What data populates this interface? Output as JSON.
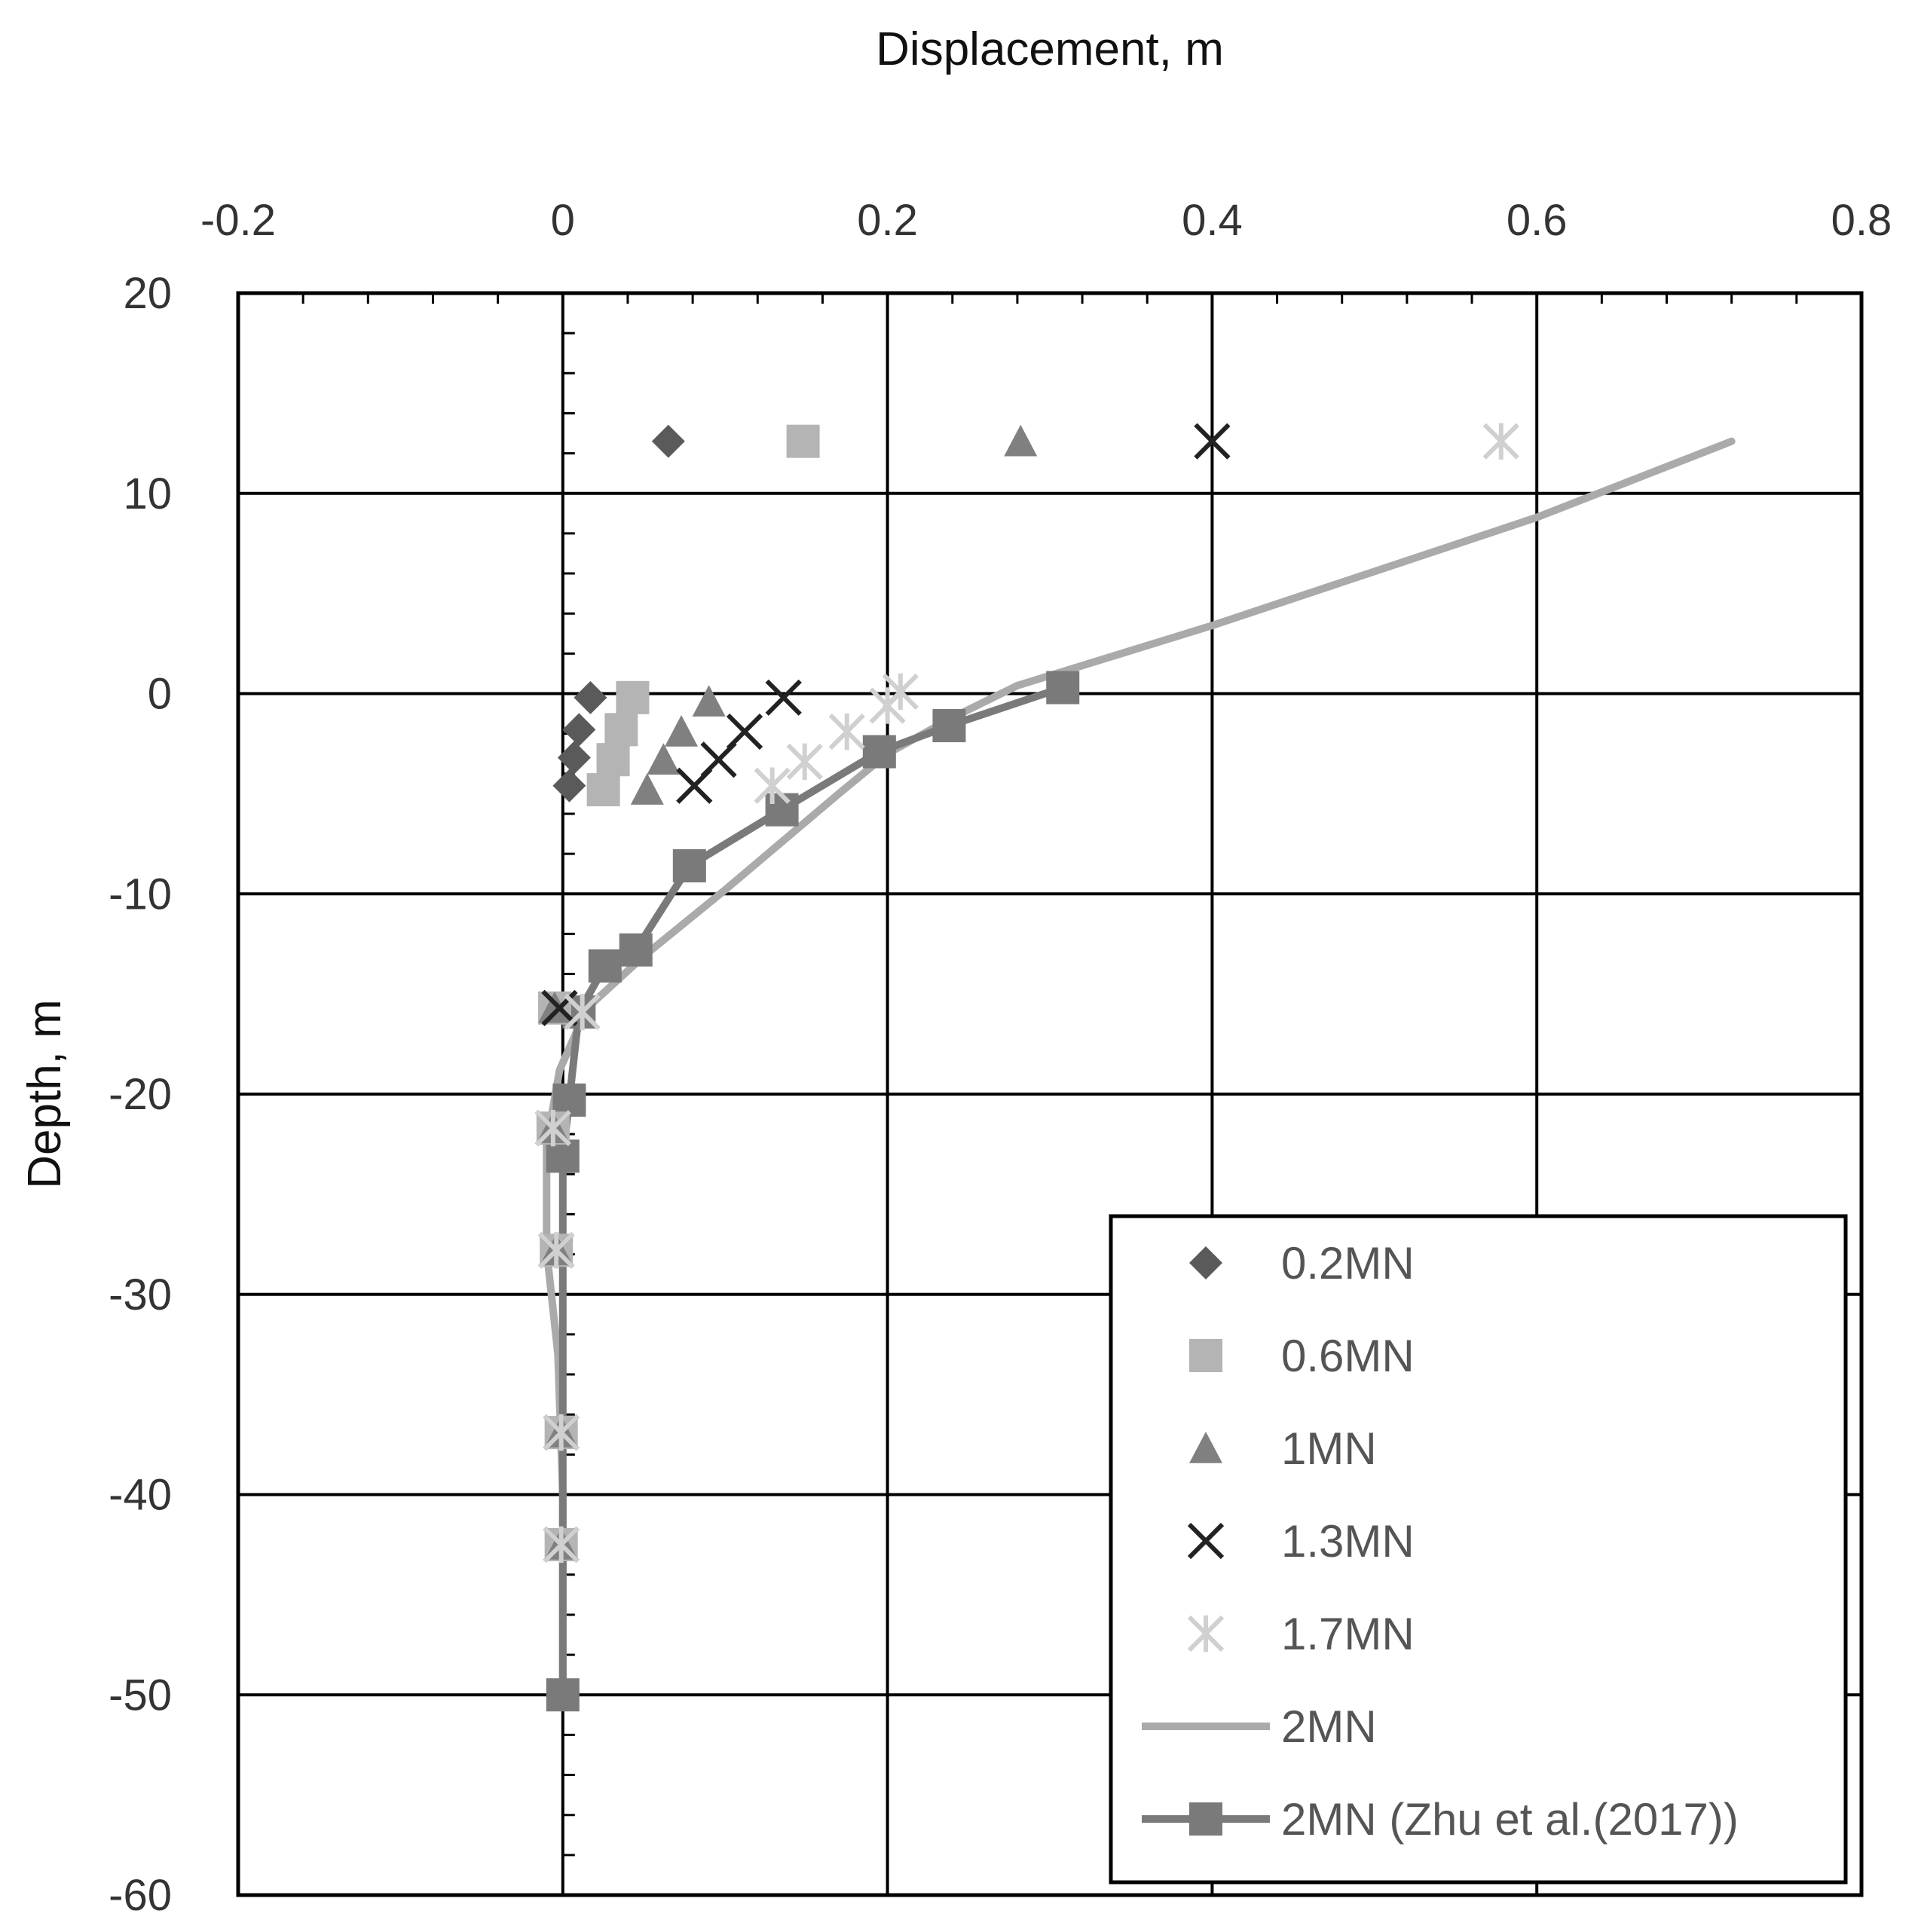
{
  "chart_data": {
    "type": "scatter",
    "xlabel": "Displacement, m",
    "ylabel": "Depth, m",
    "xlim": [
      -0.2,
      0.8
    ],
    "ylim": [
      -60,
      20
    ],
    "x_ticks": [
      "-0.2",
      "0",
      "0.2",
      "0.4",
      "0.6",
      "0.8"
    ],
    "y_ticks": [
      "20",
      "10",
      "0",
      "-10",
      "-20",
      "-30",
      "-40",
      "-50",
      "-60"
    ],
    "x_axis_position": "top",
    "grid": true,
    "legend_position": "bottom-right",
    "series": [
      {
        "name": "0.2MN",
        "marker": "diamond",
        "line": false,
        "color": "#5a5a5a",
        "points": [
          [
            0.065,
            12.6
          ],
          [
            0.017,
            -0.2
          ],
          [
            0.01,
            -1.8
          ],
          [
            0.007,
            -3.2
          ],
          [
            0.004,
            -4.6
          ],
          [
            -0.005,
            -15.7
          ],
          [
            -0.006,
            -21.7
          ],
          [
            -0.004,
            -27.8
          ],
          [
            -0.001,
            -36.9
          ],
          [
            -0.001,
            -42.5
          ]
        ]
      },
      {
        "name": "0.6MN",
        "marker": "square",
        "line": false,
        "color": "#b4b4b4",
        "points": [
          [
            0.148,
            12.6
          ],
          [
            0.043,
            -0.2
          ],
          [
            0.036,
            -1.8
          ],
          [
            0.031,
            -3.3
          ],
          [
            0.025,
            -4.8
          ],
          [
            -0.005,
            -15.7
          ],
          [
            -0.006,
            -21.7
          ],
          [
            -0.004,
            -27.8
          ],
          [
            -0.001,
            -36.9
          ],
          [
            -0.001,
            -42.5
          ]
        ]
      },
      {
        "name": "1MN",
        "marker": "triangle",
        "line": false,
        "color": "#808080",
        "points": [
          [
            0.282,
            12.6
          ],
          [
            0.09,
            -0.4
          ],
          [
            0.073,
            -1.9
          ],
          [
            0.062,
            -3.3
          ],
          [
            0.052,
            -4.8
          ],
          [
            -0.005,
            -15.7
          ],
          [
            -0.006,
            -21.7
          ],
          [
            -0.004,
            -27.8
          ],
          [
            -0.001,
            -36.9
          ],
          [
            -0.001,
            -42.5
          ]
        ]
      },
      {
        "name": "1.3MN",
        "marker": "x",
        "line": false,
        "color": "#222222",
        "points": [
          [
            0.4,
            12.6
          ],
          [
            0.136,
            -0.2
          ],
          [
            0.112,
            -1.9
          ],
          [
            0.096,
            -3.3
          ],
          [
            0.081,
            -4.6
          ],
          [
            -0.002,
            -15.7
          ],
          [
            -0.006,
            -21.7
          ],
          [
            -0.004,
            -27.8
          ],
          [
            -0.001,
            -36.9
          ],
          [
            -0.001,
            -42.5
          ]
        ]
      },
      {
        "name": "1.7MN",
        "marker": "asterisk",
        "line": false,
        "color": "#d0d0d0",
        "points": [
          [
            0.578,
            12.6
          ],
          [
            0.208,
            0.1
          ],
          [
            0.2,
            -0.6
          ],
          [
            0.175,
            -1.9
          ],
          [
            0.149,
            -3.4
          ],
          [
            0.129,
            -4.6
          ],
          [
            0.012,
            -15.9
          ],
          [
            -0.006,
            -21.7
          ],
          [
            -0.004,
            -27.8
          ],
          [
            -0.001,
            -36.9
          ],
          [
            -0.001,
            -42.5
          ]
        ]
      },
      {
        "name": "2MN",
        "marker": "none",
        "line": true,
        "color": "#aaaaaa",
        "points": [
          [
            0.72,
            12.6
          ],
          [
            0.6,
            8.8
          ],
          [
            0.4,
            3.4
          ],
          [
            0.28,
            0.4
          ],
          [
            0.24,
            -1.2
          ],
          [
            0.2,
            -3.0
          ],
          [
            0.17,
            -5.0
          ],
          [
            0.1,
            -9.8
          ],
          [
            0.05,
            -13.1
          ],
          [
            0.015,
            -15.7
          ],
          [
            -0.002,
            -18.8
          ],
          [
            -0.01,
            -22.5
          ],
          [
            -0.01,
            -27.8
          ],
          [
            -0.003,
            -33.0
          ],
          [
            0.0,
            -40.0
          ],
          [
            0.0,
            -50.0
          ]
        ]
      },
      {
        "name": "2MN (Zhu et al.(2017))",
        "marker": "square",
        "line": true,
        "color": "#7a7a7a",
        "points": [
          [
            0.308,
            0.3
          ],
          [
            0.238,
            -1.6
          ],
          [
            0.195,
            -2.9
          ],
          [
            0.135,
            -5.8
          ],
          [
            0.078,
            -8.6
          ],
          [
            0.045,
            -12.8
          ],
          [
            0.026,
            -13.6
          ],
          [
            0.01,
            -15.9
          ],
          [
            0.004,
            -20.3
          ],
          [
            0.0,
            -23.1
          ],
          [
            0.0,
            -50.0
          ]
        ]
      }
    ]
  }
}
